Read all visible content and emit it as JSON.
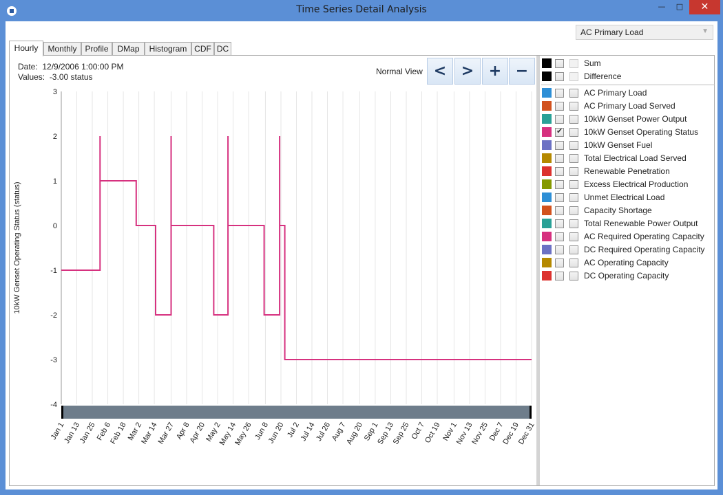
{
  "window": {
    "title": "Time Series Detail Analysis",
    "minimize": "—",
    "maximize": "□",
    "close": "✕"
  },
  "series_select": {
    "selected": "AC Primary Load"
  },
  "tabs": [
    {
      "label": "Hourly",
      "active": true
    },
    {
      "label": "Monthly",
      "active": false
    },
    {
      "label": "Profile",
      "active": false
    },
    {
      "label": "DMap",
      "active": false
    },
    {
      "label": "Histogram",
      "active": false
    },
    {
      "label": "CDF",
      "active": false
    },
    {
      "label": "DC",
      "active": false
    }
  ],
  "info": {
    "date_label": "Date:",
    "date_value": "12/9/2006 1:00:00 PM",
    "values_label": "Values:",
    "values_value": "-3.00 status"
  },
  "view": {
    "mode_label": "Normal View",
    "prev": "<",
    "next": ">",
    "zoom_in": "+",
    "zoom_out": "−"
  },
  "chart_data": {
    "type": "line",
    "ylabel": "10kW Genset Operating Status (status)",
    "xlabel": "",
    "title": "",
    "ylim": [
      -4,
      3
    ],
    "yticks": [
      3,
      2,
      1,
      0,
      -1,
      -2,
      -3,
      -4
    ],
    "xlim": [
      "Jan 1",
      "Dec 31"
    ],
    "xticks": [
      "Jan 1",
      "Jan 13",
      "Jan 25",
      "Feb 6",
      "Feb 18",
      "Mar 2",
      "Mar 14",
      "Mar 27",
      "Apr 8",
      "Apr 20",
      "May 2",
      "May 14",
      "May 26",
      "Jun 8",
      "Jun 20",
      "Jul 2",
      "Jul 14",
      "Jul 26",
      "Aug 7",
      "Aug 20",
      "Sep 1",
      "Sep 13",
      "Sep 25",
      "Oct 7",
      "Oct 19",
      "Nov 1",
      "Nov 13",
      "Nov 25",
      "Dec 7",
      "Dec 19",
      "Dec 31"
    ],
    "grid": true,
    "series": [
      {
        "color": "#d6317f",
        "x": [
          "Jan 1",
          "Jan 31",
          "Jan 31",
          "Jan 31",
          "Feb 28",
          "Feb 28",
          "Mar 15",
          "Mar 15",
          "Mar 27",
          "Mar 27",
          "Mar 27",
          "Apr 29",
          "Apr 29",
          "May 10",
          "May 10",
          "May 10",
          "Jun 7",
          "Jun 7",
          "Jun 19",
          "Jun 19",
          "Jun 19",
          "Jun 23",
          "Jun 23",
          "Dec 31"
        ],
        "y": [
          -1,
          -1,
          2,
          1,
          1,
          0,
          0,
          -2,
          -2,
          2,
          0,
          0,
          -2,
          -2,
          2,
          0,
          0,
          -2,
          -2,
          2,
          0,
          0,
          -3,
          -3
        ]
      }
    ]
  },
  "legend": {
    "aggregate": [
      {
        "label": "Sum",
        "swatch": "#000000",
        "checked": false
      },
      {
        "label": "Difference",
        "swatch": "#000000",
        "checked": false
      }
    ],
    "series": [
      {
        "label": "AC Primary Load",
        "swatch": "#2e8fd6",
        "checked": false
      },
      {
        "label": "AC Primary Load Served",
        "swatch": "#d2521e",
        "checked": false
      },
      {
        "label": "10kW Genset Power Output",
        "swatch": "#2aa197",
        "checked": false
      },
      {
        "label": "10kW Genset Operating Status",
        "swatch": "#d6317f",
        "checked": true
      },
      {
        "label": "10kW Genset Fuel",
        "swatch": "#6c71c4",
        "checked": false
      },
      {
        "label": "Total Electrical Load Served",
        "swatch": "#b58900",
        "checked": false
      },
      {
        "label": "Renewable Penetration",
        "swatch": "#dc322f",
        "checked": false
      },
      {
        "label": "Excess Electrical Production",
        "swatch": "#859900",
        "checked": false
      },
      {
        "label": "Unmet Electrical Load",
        "swatch": "#2e8fd6",
        "checked": false
      },
      {
        "label": "Capacity Shortage",
        "swatch": "#d2521e",
        "checked": false
      },
      {
        "label": "Total Renewable Power Output",
        "swatch": "#2aa197",
        "checked": false
      },
      {
        "label": "AC Required Operating Capacity",
        "swatch": "#d6317f",
        "checked": false
      },
      {
        "label": "DC Required Operating Capacity",
        "swatch": "#6c71c4",
        "checked": false
      },
      {
        "label": "AC Operating Capacity",
        "swatch": "#b58900",
        "checked": false
      },
      {
        "label": "DC Operating Capacity",
        "swatch": "#dc322f",
        "checked": false
      }
    ]
  }
}
